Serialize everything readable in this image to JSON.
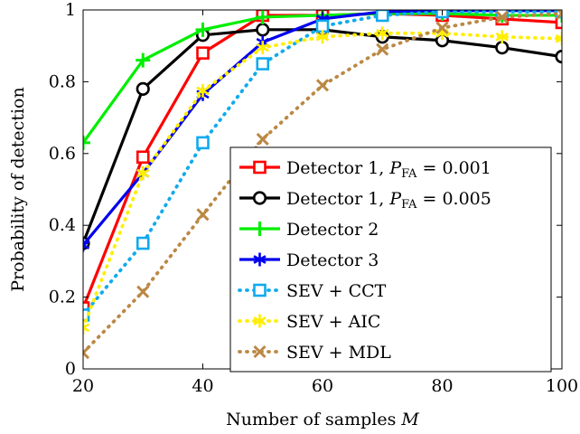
{
  "chart_data": {
    "type": "line",
    "xlabel": "Number of samples M",
    "ylabel": "Probability of detection",
    "xlim": [
      20,
      100
    ],
    "ylim": [
      0,
      1
    ],
    "xticks": [
      20,
      40,
      60,
      80,
      100
    ],
    "yticks": [
      0,
      0.2,
      0.4,
      0.6,
      0.8,
      1
    ],
    "xtick_labels": [
      "20",
      "40",
      "60",
      "80",
      "100"
    ],
    "ytick_labels": [
      "0",
      "0.2",
      "0.4",
      "0.6",
      "0.8",
      "1"
    ],
    "grid": false,
    "legend_position": "bottom-right",
    "x": [
      20,
      30,
      40,
      50,
      60,
      70,
      80,
      90,
      100
    ],
    "series": [
      {
        "name": "Detector 1, P_FA = 0.001",
        "legend_main": "Detector 1, ",
        "legend_math": "P",
        "legend_sub": "FA",
        "legend_tail": " = 0.001",
        "color": "#ff0000",
        "marker": "square",
        "dash": "solid",
        "values": [
          0.17,
          0.59,
          0.88,
          0.985,
          0.985,
          0.99,
          0.985,
          0.975,
          0.965
        ]
      },
      {
        "name": "Detector 1, P_FA = 0.005",
        "legend_main": "Detector 1, ",
        "legend_math": "P",
        "legend_sub": "FA",
        "legend_tail": " = 0.005",
        "color": "#000000",
        "marker": "circle",
        "dash": "solid",
        "values": [
          0.35,
          0.78,
          0.93,
          0.945,
          0.945,
          0.925,
          0.915,
          0.895,
          0.87
        ]
      },
      {
        "name": "Detector 2",
        "legend_main": "Detector 2",
        "color": "#00ee00",
        "marker": "plus",
        "dash": "solid",
        "values": [
          0.63,
          0.86,
          0.945,
          0.98,
          0.985,
          0.99,
          0.99,
          0.985,
          0.985
        ]
      },
      {
        "name": "Detector 3",
        "legend_main": "Detector 3",
        "color": "#0000ee",
        "marker": "asterisk",
        "dash": "solid",
        "values": [
          0.345,
          0.545,
          0.765,
          0.91,
          0.975,
          0.995,
          0.998,
          0.998,
          0.998
        ]
      },
      {
        "name": "SEV + CCT",
        "legend_main": "SEV + CCT",
        "color": "#11aaee",
        "marker": "square",
        "dash": "dotted",
        "values": [
          0.15,
          0.35,
          0.63,
          0.85,
          0.955,
          0.985,
          0.995,
          0.995,
          0.995
        ]
      },
      {
        "name": "SEV + AIC",
        "legend_main": "SEV + AIC",
        "color": "#ffee00",
        "marker": "asterisk",
        "dash": "dotted",
        "values": [
          0.115,
          0.545,
          0.775,
          0.895,
          0.925,
          0.935,
          0.935,
          0.925,
          0.92
        ]
      },
      {
        "name": "SEV + MDL",
        "legend_main": "SEV + MDL",
        "color": "#bb8844",
        "marker": "cross",
        "dash": "dotted",
        "values": [
          0.045,
          0.215,
          0.43,
          0.64,
          0.79,
          0.89,
          0.95,
          0.98,
          0.99
        ]
      }
    ]
  }
}
